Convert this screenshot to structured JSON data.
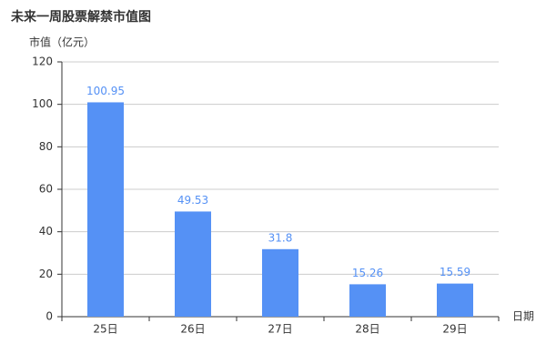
{
  "chart_data": {
    "type": "bar",
    "title": "未来一周股票解禁市值图",
    "y_label": "市值（亿元）",
    "x_label": "日期",
    "categories": [
      "25日",
      "26日",
      "27日",
      "28日",
      "29日"
    ],
    "values": [
      100.95,
      49.53,
      31.8,
      15.26,
      15.59
    ],
    "color": "#5591f5",
    "ylim": [
      0,
      120
    ],
    "yticks": [
      0,
      20,
      40,
      60,
      80,
      100,
      120
    ],
    "grid": true
  }
}
